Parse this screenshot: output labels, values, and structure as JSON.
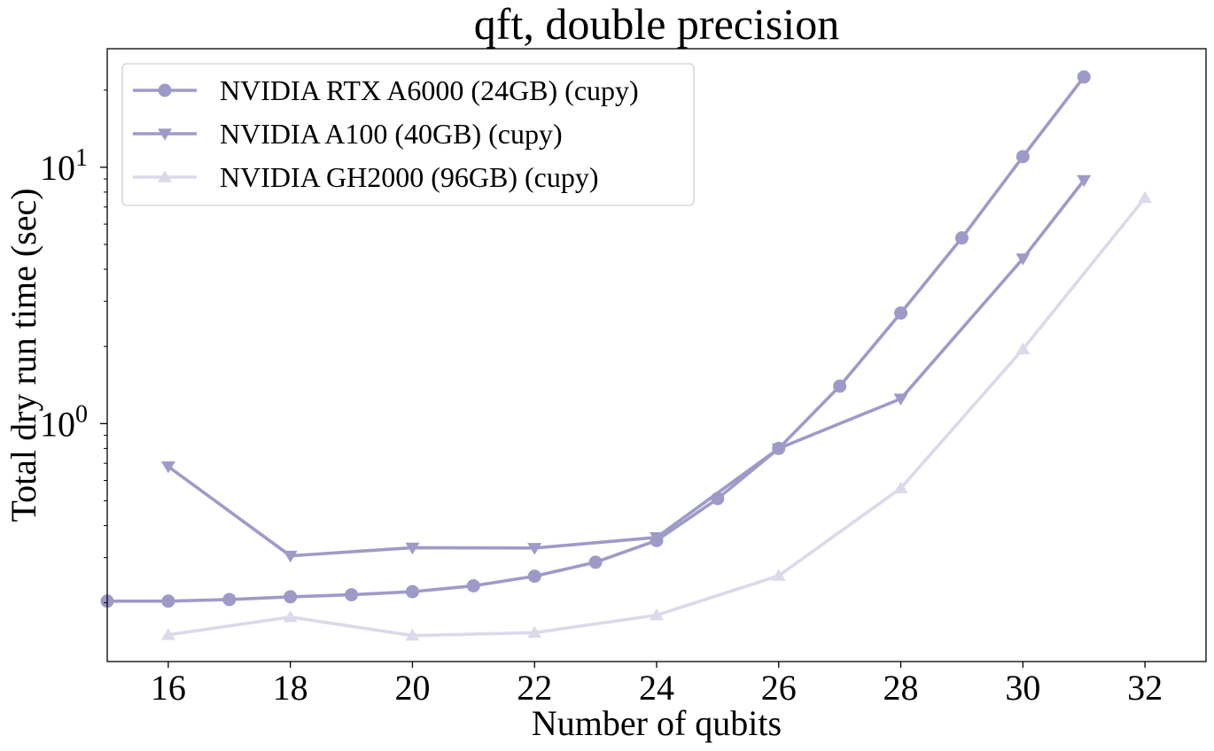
{
  "chart_data": {
    "type": "line",
    "title": "qft, double precision",
    "xlabel": "Number of qubits",
    "ylabel": "Total dry run time (sec)",
    "xlim": [
      15,
      33
    ],
    "ylim": [
      0.118,
      29
    ],
    "yscale": "log",
    "x_ticks": [
      16,
      18,
      20,
      22,
      24,
      26,
      28,
      30,
      32
    ],
    "x_tick_labels": [
      "16",
      "18",
      "20",
      "22",
      "24",
      "26",
      "28",
      "30",
      "32"
    ],
    "y_ticks": [
      1,
      10
    ],
    "y_tick_labels": [
      {
        "base": "10",
        "exp": "0"
      },
      {
        "base": "10",
        "exp": "1"
      }
    ],
    "grid": false,
    "legend_position": "top-left",
    "series": [
      {
        "name": "NVIDIA RTX A6000 (24GB) (cupy)",
        "marker": "circle",
        "color": "#9e9ac8",
        "x": [
          15,
          16,
          17,
          18,
          19,
          20,
          21,
          22,
          23,
          24,
          25,
          26,
          27,
          28,
          29,
          30,
          31
        ],
        "y": [
          0.203,
          0.203,
          0.206,
          0.211,
          0.215,
          0.221,
          0.233,
          0.254,
          0.288,
          0.35,
          0.51,
          0.8,
          1.4,
          2.7,
          5.3,
          11.0,
          22.5
        ]
      },
      {
        "name": "NVIDIA A100 (40GB) (cupy)",
        "marker": "triangle-down",
        "color": "#9e9ac8",
        "x": [
          16,
          18,
          20,
          22,
          24,
          26,
          28,
          30,
          31
        ],
        "y": [
          0.68,
          0.305,
          0.328,
          0.327,
          0.36,
          0.8,
          1.25,
          4.4,
          8.9
        ]
      },
      {
        "name": "NVIDIA GH2000 (96GB) (cupy)",
        "marker": "triangle-up",
        "color": "#dadaeb",
        "x": [
          16,
          18,
          20,
          22,
          24,
          26,
          28,
          30,
          32
        ],
        "y": [
          0.15,
          0.176,
          0.149,
          0.153,
          0.179,
          0.255,
          0.56,
          1.95,
          7.6
        ]
      }
    ]
  }
}
